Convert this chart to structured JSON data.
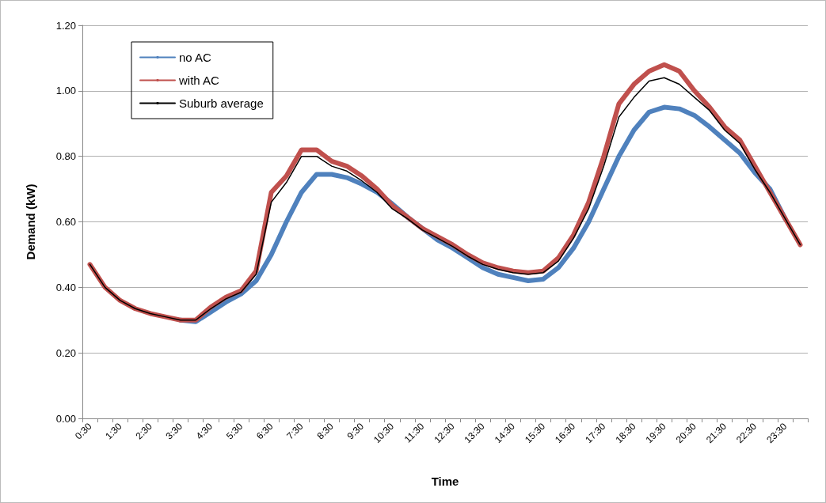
{
  "chart_data": {
    "type": "line",
    "xlabel": "Time",
    "ylabel": "Demand (kW)",
    "categories": [
      "0:30",
      null,
      "1:30",
      null,
      "2:30",
      null,
      "3:30",
      null,
      "4:30",
      null,
      "5:30",
      null,
      "6:30",
      null,
      "7:30",
      null,
      "8:30",
      null,
      "9:30",
      null,
      "10:30",
      null,
      "11:30",
      null,
      "12:30",
      null,
      "13:30",
      null,
      "14:30",
      null,
      "15:30",
      null,
      "16:30",
      null,
      "17:30",
      null,
      "18:30",
      null,
      "19:30",
      null,
      "20:30",
      null,
      "21:30",
      null,
      "22:30",
      null,
      "23:30",
      null
    ],
    "series": [
      {
        "name": "no AC",
        "color": "#4f81bd",
        "values": [
          null,
          null,
          null,
          null,
          null,
          null,
          0.3,
          0.295,
          0.325,
          0.355,
          0.38,
          0.42,
          0.5,
          0.6,
          0.69,
          0.745,
          0.745,
          0.735,
          0.715,
          0.69,
          0.655,
          0.615,
          0.58,
          0.545,
          0.52,
          0.49,
          0.46,
          0.44,
          0.43,
          0.42,
          0.425,
          0.46,
          0.52,
          0.6,
          0.7,
          0.8,
          0.88,
          0.935,
          0.95,
          0.945,
          0.925,
          0.89,
          0.85,
          0.81,
          0.75,
          0.7,
          0.61,
          null
        ]
      },
      {
        "name": "with AC",
        "color": "#c0504d",
        "values": [
          0.47,
          0.4,
          0.36,
          0.335,
          0.32,
          0.31,
          0.3,
          0.3,
          0.34,
          0.37,
          0.39,
          0.45,
          0.69,
          0.74,
          0.82,
          0.82,
          0.785,
          0.77,
          0.74,
          0.7,
          0.65,
          0.615,
          0.58,
          0.555,
          0.53,
          0.5,
          0.475,
          0.46,
          0.45,
          0.445,
          0.45,
          0.49,
          0.56,
          0.66,
          0.8,
          0.96,
          1.02,
          1.06,
          1.08,
          1.06,
          1.0,
          0.95,
          0.89,
          0.85,
          0.77,
          0.69,
          0.61,
          0.53
        ]
      },
      {
        "name": "Suburb average",
        "color": "#000000",
        "values": [
          0.47,
          0.4,
          0.36,
          0.335,
          0.32,
          0.31,
          0.3,
          0.3,
          0.335,
          0.365,
          0.385,
          0.44,
          0.66,
          0.72,
          0.8,
          0.8,
          0.77,
          0.755,
          0.725,
          0.69,
          0.64,
          0.61,
          0.575,
          0.55,
          0.525,
          0.495,
          0.47,
          0.455,
          0.445,
          0.44,
          0.445,
          0.48,
          0.55,
          0.64,
          0.77,
          0.92,
          0.98,
          1.03,
          1.04,
          1.02,
          0.98,
          0.94,
          0.88,
          0.84,
          0.76,
          0.69,
          0.61,
          0.53
        ]
      }
    ],
    "ylim": [
      0,
      1.2
    ],
    "yticks": [
      {
        "value": 0,
        "label": "0.00"
      },
      {
        "value": 0.2,
        "label": "0.20"
      },
      {
        "value": 0.4,
        "label": "0.40"
      },
      {
        "value": 0.6,
        "label": "0.60"
      },
      {
        "value": 0.8,
        "label": "0.80"
      },
      {
        "value": 1.0,
        "label": "1.00"
      },
      {
        "value": 1.2,
        "label": "1.20"
      }
    ],
    "grid": "y",
    "legend": "top left",
    "marker": "none",
    "line_style": "solid"
  }
}
